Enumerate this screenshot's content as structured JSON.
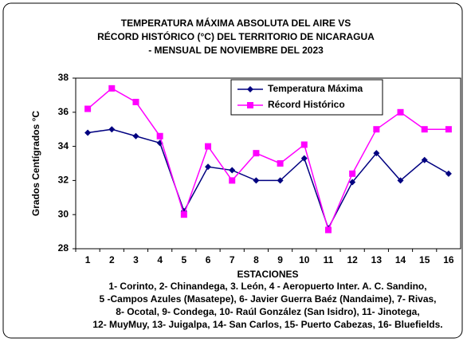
{
  "chart_data": {
    "type": "line",
    "title": [
      "TEMPERATURA MÁXIMA  ABSOLUTA DEL AIRE  VS",
      "RÉCORD HISTÓRICO  (°C) DEL TERRITORIO DE NICARAGUA",
      "-  MENSUAL DE NOVIEMBRE DEL 2023"
    ],
    "x_label": "ESTACIONES",
    "y_label": "Grados Centígrados °C",
    "notes": [
      "1- Corinto,  2- Chinandega, 3. León, 4 - Aeropuerto Inter. A. C. Sandino,",
      "5 -Campos Azules (Masatepe), 6- Javier Guerra Baéz (Nandaime), 7- Rivas,",
      "8- Ocotal, 9- Condega, 10- Raúl González (San Isidro), 11- Jinotega,",
      "12- MuyMuy, 13- Juigalpa, 14- San Carlos, 15- Puerto Cabezas, 16- Bluefields."
    ],
    "categories": [
      "1",
      "2",
      "3",
      "4",
      "5",
      "6",
      "7",
      "8",
      "9",
      "10",
      "11",
      "12",
      "13",
      "14",
      "15",
      "16"
    ],
    "series": [
      {
        "name": "Temperatura Máxima",
        "color": "#000080",
        "marker": "diamond",
        "values": [
          34.8,
          35.0,
          34.6,
          34.2,
          30.2,
          32.8,
          32.6,
          32.0,
          32.0,
          33.3,
          29.2,
          31.9,
          33.6,
          32.0,
          33.2,
          32.4
        ]
      },
      {
        "name": "Récord Histórico",
        "color": "#FF00FF",
        "marker": "square",
        "values": [
          36.2,
          37.4,
          36.6,
          34.6,
          30.0,
          34.0,
          32.0,
          33.6,
          33.0,
          34.1,
          29.1,
          32.4,
          35.0,
          36.0,
          35.0,
          35.0
        ]
      }
    ],
    "ylim": [
      28,
      38
    ],
    "yticks": [
      28,
      30,
      32,
      34,
      36,
      38
    ],
    "grid": false
  }
}
